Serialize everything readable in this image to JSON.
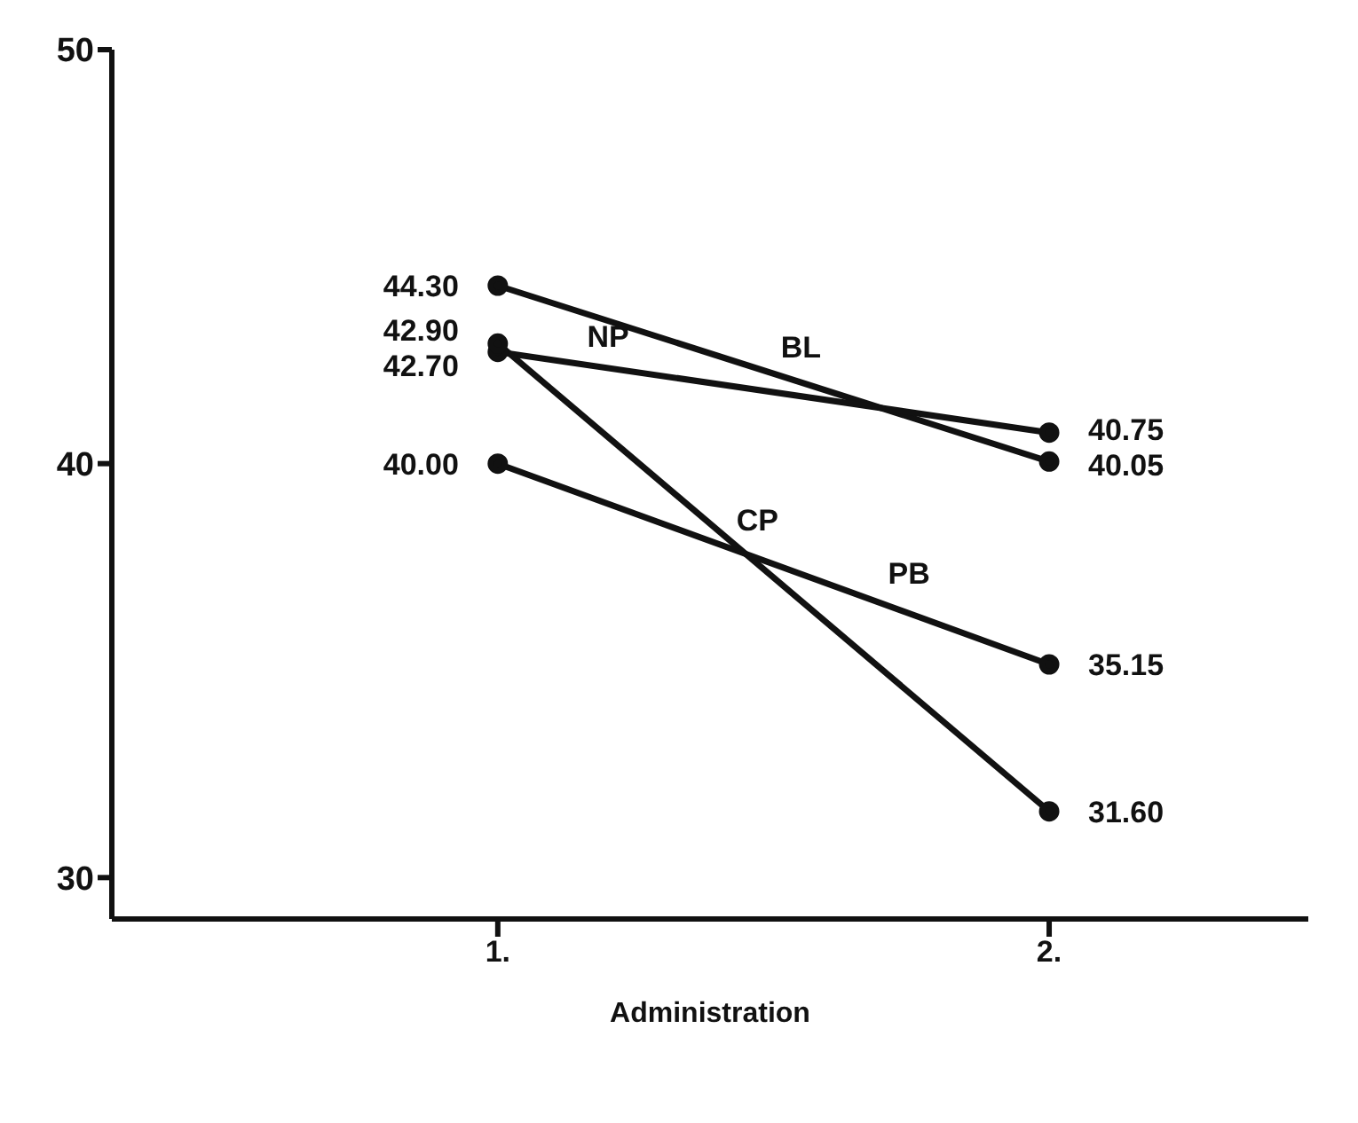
{
  "chart_data": {
    "type": "line",
    "xlabel": "Administration",
    "categories": [
      "1.",
      "2."
    ],
    "series": [
      {
        "name": "BL",
        "color": "#111111",
        "values": [
          44.3,
          40.05
        ],
        "value_labels": [
          "44.30",
          "40.05"
        ]
      },
      {
        "name": "NP",
        "color": "#111111",
        "values": [
          42.7,
          40.75
        ],
        "value_labels": [
          "42.70",
          "40.75"
        ]
      },
      {
        "name": "CP",
        "color": "#111111",
        "values": [
          42.9,
          31.6
        ],
        "value_labels": [
          "42.90",
          "31.60"
        ]
      },
      {
        "name": "PB",
        "color": "#111111",
        "values": [
          40.0,
          35.15
        ],
        "value_labels": [
          "40.00",
          "35.15"
        ]
      }
    ],
    "ylim": [
      29,
      50
    ],
    "yticks": [
      30,
      40,
      50
    ],
    "marker": "circle",
    "line_style": "solid"
  }
}
